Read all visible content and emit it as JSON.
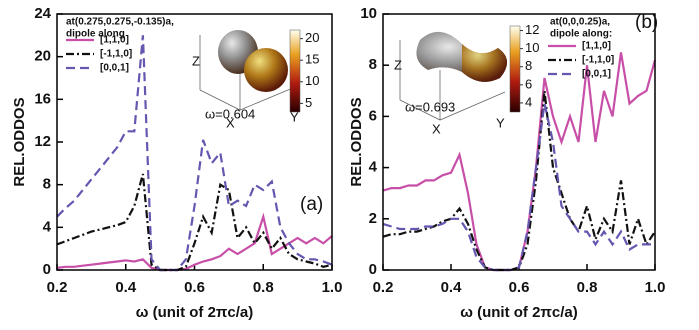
{
  "chart_data": [
    {
      "type": "line",
      "x_label": "ω (unit of 2πc/a)",
      "y_label": "REL.ODDOS",
      "annotation_lines": [
        "at(0.275,0.275,-0.135)a,",
        "dipole along"
      ],
      "omega_label": "ω=0.604",
      "panel_label": "(a)",
      "inset_axes": [
        "Z",
        "X",
        "Y"
      ],
      "colorbar": {
        "lim": [
          3,
          22
        ],
        "ticks": [
          5,
          10,
          15,
          20
        ]
      },
      "x": [
        0.2,
        0.225,
        0.25,
        0.275,
        0.3,
        0.325,
        0.35,
        0.375,
        0.4,
        0.425,
        0.45,
        0.475,
        0.5,
        0.525,
        0.55,
        0.575,
        0.6,
        0.625,
        0.65,
        0.675,
        0.7,
        0.725,
        0.75,
        0.775,
        0.8,
        0.825,
        0.85,
        0.875,
        0.9,
        0.925,
        0.95,
        0.975,
        1.0
      ],
      "series": [
        {
          "name": "[1,1,0]",
          "color": "#c84fa8",
          "dash": "solid",
          "values": [
            0.2,
            0.3,
            0.3,
            0.4,
            0.5,
            0.6,
            0.7,
            0.8,
            0.9,
            0.8,
            1.0,
            0.2,
            0,
            0,
            0,
            0.1,
            0.5,
            0.8,
            1.0,
            1.3,
            2.0,
            1.5,
            2.0,
            2.5,
            5.0,
            1.5,
            2.0,
            2.5,
            3.0,
            2.5,
            3.0,
            2.5,
            3.2
          ]
        },
        {
          "name": "[-1,1,0]",
          "color": "#111111",
          "dash": "dashdot",
          "values": [
            2.4,
            2.7,
            3.0,
            3.3,
            3.6,
            3.8,
            4.0,
            4.2,
            4.5,
            6.0,
            9.0,
            0.5,
            0,
            0,
            0,
            0.3,
            2.5,
            5.0,
            3.5,
            8.0,
            7.5,
            3.0,
            4.0,
            2.5,
            3.5,
            2.0,
            3.0,
            1.5,
            1.0,
            0.8,
            0.6,
            0.3,
            0.5
          ]
        },
        {
          "name": "[0,0,1]",
          "color": "#6656b0",
          "dash": "dashed",
          "values": [
            5.0,
            5.8,
            6.5,
            7.5,
            8.5,
            9.5,
            10.5,
            11.5,
            13.0,
            13.0,
            22.0,
            1.0,
            0,
            0,
            0,
            1.0,
            6.0,
            12.2,
            10.0,
            11.0,
            6.0,
            6.5,
            6.0,
            8.0,
            7.5,
            8.3,
            4.0,
            2.5,
            1.5,
            1.0,
            1.0,
            0.8,
            0.5
          ]
        }
      ],
      "xlim": [
        0.2,
        1.0
      ],
      "xticks": [
        0.2,
        0.4,
        0.6,
        0.8,
        {
          "value": 1,
          "label": "1.0"
        }
      ],
      "ylim": [
        0,
        24
      ],
      "yticks": [
        0,
        4,
        8,
        12,
        16,
        20,
        24
      ]
    },
    {
      "type": "line",
      "x_label": "ω (unit of 2πc/a)",
      "y_label": "REL.ODDOS",
      "annotation_lines": [
        "at(0,0,0.25)a,",
        "dipole along:"
      ],
      "omega_label": "ω=0.693",
      "panel_label": "(b)",
      "inset_axes": [
        "Z",
        "X",
        "Y"
      ],
      "colorbar": {
        "lim": [
          3,
          12.5
        ],
        "ticks": [
          4,
          6,
          8,
          10,
          12
        ]
      },
      "x": [
        0.2,
        0.225,
        0.25,
        0.275,
        0.3,
        0.325,
        0.35,
        0.375,
        0.4,
        0.425,
        0.45,
        0.475,
        0.5,
        0.525,
        0.55,
        0.575,
        0.6,
        0.625,
        0.65,
        0.675,
        0.7,
        0.725,
        0.75,
        0.775,
        0.8,
        0.825,
        0.85,
        0.875,
        0.9,
        0.925,
        0.95,
        0.975,
        1.0
      ],
      "series": [
        {
          "name": "[1,1,0]",
          "color": "#c84fa8",
          "dash": "solid",
          "values": [
            3.1,
            3.2,
            3.2,
            3.3,
            3.3,
            3.5,
            3.5,
            3.7,
            3.8,
            4.5,
            3.0,
            1.0,
            0.1,
            0,
            0,
            0,
            0.1,
            1.5,
            4.0,
            7.5,
            6.0,
            5.0,
            6.0,
            5.0,
            8.0,
            5.0,
            7.0,
            6.0,
            8.5,
            6.5,
            6.8,
            7.0,
            8.2
          ]
        },
        {
          "name": "[-1,1,0]",
          "color": "#111111",
          "dash": "dashdot",
          "values": [
            1.3,
            1.4,
            1.4,
            1.5,
            1.5,
            1.6,
            1.7,
            1.9,
            2.0,
            2.4,
            1.8,
            0.8,
            0.1,
            0,
            0,
            0,
            0.1,
            1.0,
            3.5,
            7.0,
            4.0,
            3.0,
            2.0,
            1.5,
            2.5,
            1.2,
            2.0,
            1.5,
            3.5,
            1.0,
            2.0,
            1.0,
            1.5
          ]
        },
        {
          "name": "[0,0,1]",
          "color": "#6656b0",
          "dash": "dashed",
          "values": [
            1.8,
            1.7,
            1.6,
            1.6,
            1.6,
            1.7,
            1.7,
            1.8,
            2.0,
            2.0,
            1.5,
            0.5,
            0.1,
            0,
            0,
            0,
            0.1,
            1.5,
            4.0,
            6.5,
            5.0,
            2.5,
            2.0,
            1.5,
            1.5,
            1.0,
            1.5,
            1.0,
            1.5,
            0.8,
            1.0,
            1.0,
            1.0
          ]
        }
      ],
      "xlim": [
        0.2,
        1.0
      ],
      "xticks": [
        0.2,
        0.4,
        0.6,
        0.8,
        {
          "value": 1,
          "label": "1.0"
        }
      ],
      "ylim": [
        0,
        10
      ],
      "yticks": [
        0,
        2,
        4,
        6,
        8,
        10
      ]
    }
  ]
}
